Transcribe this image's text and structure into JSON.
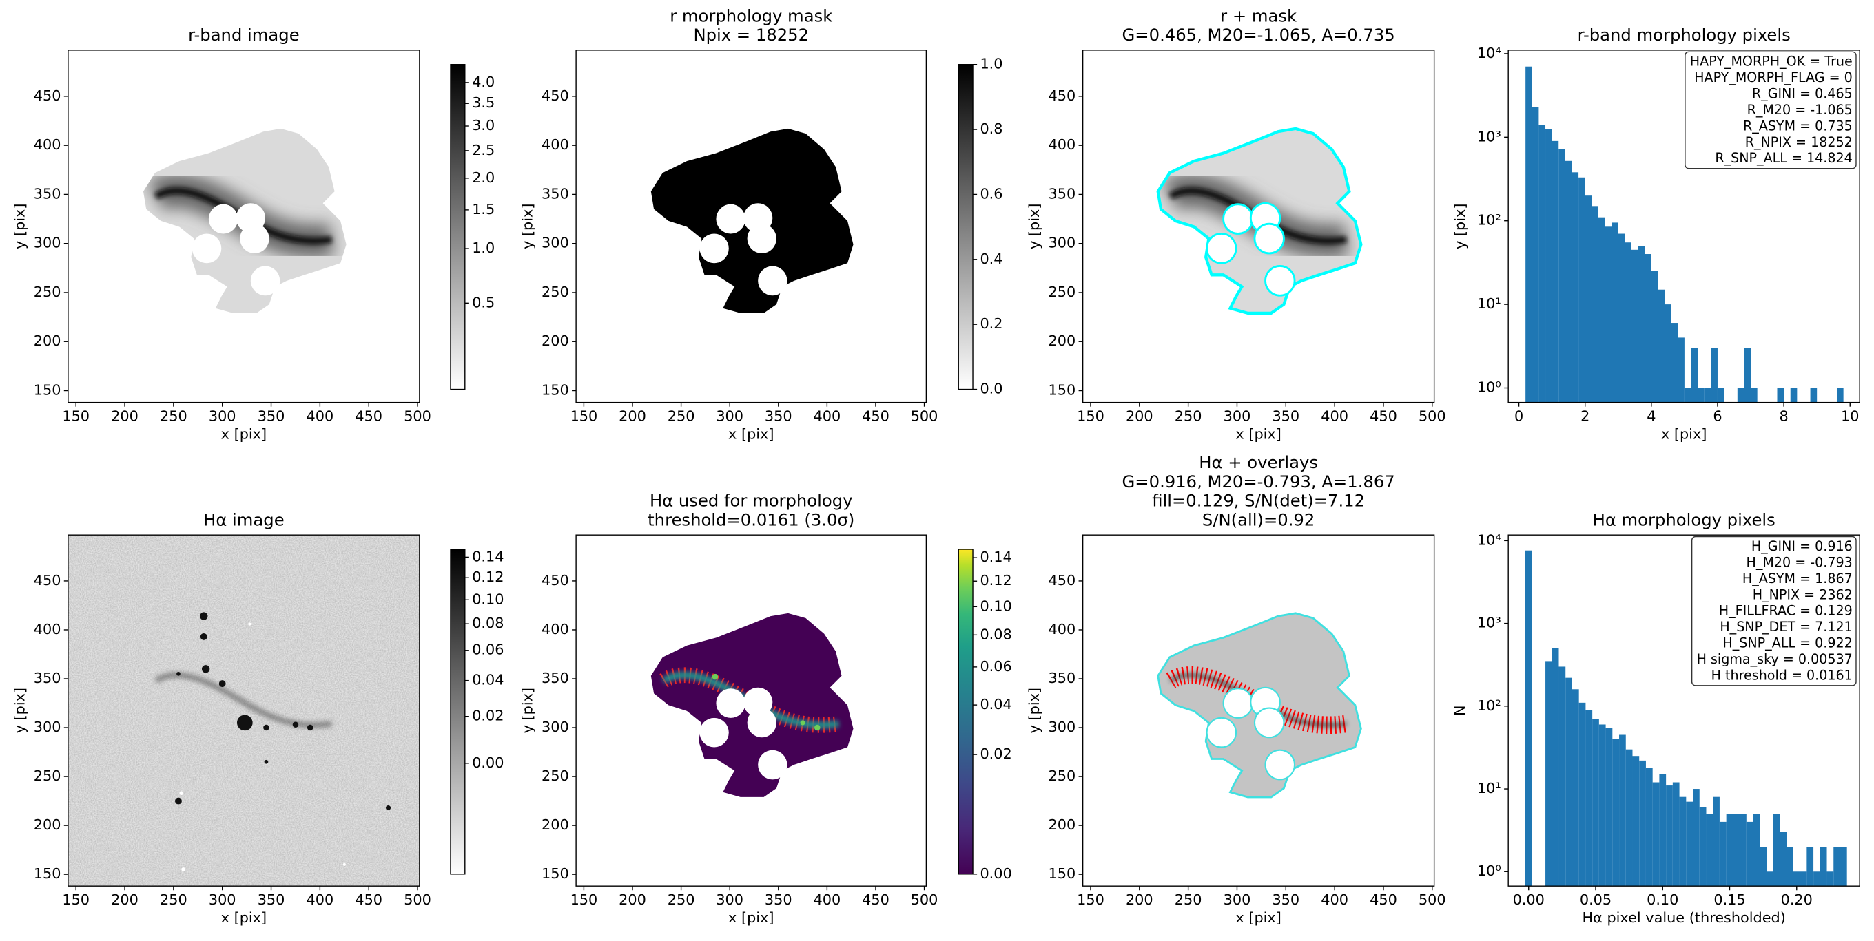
{
  "chart_data": [
    {
      "type": "image",
      "title_lines": [
        "r-band image"
      ],
      "xlabel": "x [pix]",
      "ylabel": "y [pix]",
      "xlim": [
        142,
        502
      ],
      "ylim": [
        138,
        497
      ],
      "xticks": [
        150,
        200,
        250,
        300,
        350,
        400,
        450,
        500
      ],
      "yticks": [
        150,
        200,
        250,
        300,
        350,
        400,
        450
      ],
      "colorbar": {
        "cmap": "gray_r",
        "scale": "sqrt",
        "clim": [
          0.2,
          4.46
        ],
        "ticks": [
          0.5,
          {
            "value": 1,
            "label": "1.0"
          },
          1.5,
          {
            "value": 2,
            "label": "2.0"
          },
          2.5,
          {
            "value": 3,
            "label": "3.0"
          },
          3.5,
          {
            "value": 4,
            "label": "4.0"
          }
        ]
      }
    },
    {
      "type": "image",
      "title_lines": [
        "r morphology mask",
        "Npix = 18252"
      ],
      "xlabel": "x [pix]",
      "ylabel": "y [pix]",
      "xlim": [
        142,
        502
      ],
      "ylim": [
        138,
        497
      ],
      "xticks": [
        150,
        200,
        250,
        300,
        350,
        400,
        450,
        500
      ],
      "yticks": [
        150,
        200,
        250,
        300,
        350,
        400,
        450
      ],
      "colorbar": {
        "cmap": "gray_r",
        "scale": "linear",
        "clim": [
          0,
          1
        ],
        "ticks": [
          {
            "value": 0,
            "label": "0.0"
          },
          0.2,
          0.4,
          0.6,
          0.8,
          {
            "value": 1,
            "label": "1.0"
          }
        ]
      }
    },
    {
      "type": "image",
      "title_lines": [
        "r + mask",
        "G=0.465, M20=-1.065, A=0.735"
      ],
      "xlabel": "x [pix]",
      "ylabel": "y [pix]",
      "xlim": [
        142,
        502
      ],
      "ylim": [
        138,
        497
      ],
      "xticks": [
        150,
        200,
        250,
        300,
        350,
        400,
        450,
        500
      ],
      "yticks": [
        150,
        200,
        250,
        300,
        350,
        400,
        450
      ]
    },
    {
      "type": "histogram",
      "title_lines": [
        "r-band morphology pixels"
      ],
      "xlabel": "x [pix]",
      "ylabel": "y [pix]",
      "log_y": true,
      "color": "#1f77b4",
      "xlim": [
        -0.32,
        10.29
      ],
      "ylim": [
        0.67,
        11000
      ],
      "xticks": [
        0,
        2,
        4,
        6,
        8,
        10
      ],
      "yticks": [
        {
          "value": 1,
          "label": "10⁰"
        },
        {
          "value": 10,
          "label": "10¹"
        },
        {
          "value": 100,
          "label": "10²"
        },
        {
          "value": 1000,
          "label": "10³"
        },
        {
          "value": 10000,
          "label": "10⁴"
        }
      ],
      "bins": [
        0.2,
        0.4,
        0.6,
        0.8,
        1,
        1.2,
        1.4,
        1.6,
        1.8,
        2,
        2.2,
        2.4,
        2.6,
        2.8,
        3,
        3.2,
        3.4,
        3.6,
        3.8,
        4,
        4.2,
        4.4,
        4.6,
        4.8,
        5,
        5.2,
        5.4,
        5.6,
        5.8,
        6,
        6.2,
        6.4,
        6.6,
        6.8,
        7,
        7.2,
        7.4,
        7.6,
        7.8,
        8,
        8.2,
        8.4,
        8.6,
        8.8,
        9,
        9.2,
        9.4,
        9.6,
        9.8,
        10
      ],
      "values": [
        7000,
        2300,
        1400,
        1250,
        900,
        720,
        520,
        380,
        330,
        200,
        150,
        110,
        85,
        95,
        70,
        55,
        45,
        50,
        40,
        25,
        15,
        10,
        6,
        4,
        1,
        3,
        1,
        1,
        3,
        1,
        0,
        0,
        1,
        3,
        1,
        0,
        0,
        0,
        1,
        0,
        1,
        0,
        0,
        1,
        0,
        0,
        0,
        1,
        0
      ],
      "annotation_lines": [
        "HAPY_MORPH_OK = True",
        "HAPY_MORPH_FLAG = 0",
        "R_GINI = 0.465",
        "R_M20 = -1.065",
        "R_ASYM = 0.735",
        "R_NPIX = 18252",
        "R_SNP_ALL = 14.824"
      ]
    },
    {
      "type": "image",
      "title_lines": [
        "Hα image"
      ],
      "xlabel": "x [pix]",
      "ylabel": "y [pix]",
      "xlim": [
        142,
        502
      ],
      "ylim": [
        138,
        497
      ],
      "xticks": [
        150,
        200,
        250,
        300,
        350,
        400,
        450,
        500
      ],
      "yticks": [
        150,
        200,
        250,
        300,
        350,
        400,
        450
      ],
      "colorbar": {
        "cmap": "gray_r",
        "scale": "sqrt",
        "clim": [
          -0.0195,
          0.148
        ],
        "ticks": [
          {
            "value": 0,
            "label": "0.00"
          },
          0.02,
          0.04,
          0.06,
          0.08,
          {
            "value": 0.1,
            "label": "0.10"
          },
          0.12,
          0.14
        ]
      }
    },
    {
      "type": "image",
      "title_lines": [
        "Hα used for morphology",
        "threshold=0.0161 (3.0σ)"
      ],
      "xlabel": "x [pix]",
      "ylabel": "y [pix]",
      "xlim": [
        142,
        502
      ],
      "ylim": [
        138,
        497
      ],
      "xticks": [
        150,
        200,
        250,
        300,
        350,
        400,
        450,
        500
      ],
      "yticks": [
        150,
        200,
        250,
        300,
        350,
        400,
        450
      ],
      "colorbar": {
        "cmap": "viridis",
        "scale": "sqrt",
        "clim": [
          0,
          0.1475
        ],
        "ticks": [
          {
            "value": 0,
            "label": "0.00"
          },
          0.02,
          0.04,
          0.06,
          0.08,
          {
            "value": 0.1,
            "label": "0.10"
          },
          0.12,
          0.14
        ]
      }
    },
    {
      "type": "image",
      "title_lines": [
        "Hα + overlays",
        "G=0.916, M20=-0.793, A=1.867",
        "fill=0.129, S/N(det)=7.12",
        "S/N(all)=0.92"
      ],
      "xlabel": "x [pix]",
      "ylabel": "y [pix]",
      "xlim": [
        142,
        502
      ],
      "ylim": [
        138,
        497
      ],
      "xticks": [
        150,
        200,
        250,
        300,
        350,
        400,
        450,
        500
      ],
      "yticks": [
        150,
        200,
        250,
        300,
        350,
        400,
        450
      ]
    },
    {
      "type": "histogram",
      "title_lines": [
        "Hα morphology pixels"
      ],
      "xlabel": "Hα pixel value (thresholded)",
      "ylabel": "N",
      "log_y": true,
      "color": "#1f77b4",
      "xlim": [
        -0.0152,
        0.247
      ],
      "ylim": [
        0.67,
        11700
      ],
      "xticks": [
        {
          "value": 0,
          "label": "0.00"
        },
        0.05,
        {
          "value": 0.1,
          "label": "0.10"
        },
        0.15,
        {
          "value": 0.2,
          "label": "0.20"
        }
      ],
      "yticks": [
        {
          "value": 1,
          "label": "10⁰"
        },
        {
          "value": 10,
          "label": "10¹"
        },
        {
          "value": 100,
          "label": "10²"
        },
        {
          "value": 1000,
          "label": "10³"
        },
        {
          "value": 10000,
          "label": "10⁴"
        }
      ],
      "bins": [
        -0.0025,
        0.0025,
        0.0075,
        0.0125,
        0.0175,
        0.0225,
        0.0275,
        0.0325,
        0.0375,
        0.0425,
        0.0475,
        0.0525,
        0.0575,
        0.0625,
        0.0675,
        0.0725,
        0.0775,
        0.0825,
        0.0875,
        0.0925,
        0.0975,
        0.1025,
        0.1075,
        0.1125,
        0.1175,
        0.1225,
        0.1275,
        0.1325,
        0.1375,
        0.1425,
        0.1475,
        0.1525,
        0.1575,
        0.1625,
        0.1675,
        0.1725,
        0.1775,
        0.1825,
        0.1875,
        0.1925,
        0.1975,
        0.2025,
        0.2075,
        0.2125,
        0.2175,
        0.2225,
        0.2275,
        0.2325,
        0.2375
      ],
      "values": [
        7600,
        0,
        0,
        350,
        500,
        300,
        220,
        160,
        110,
        90,
        70,
        60,
        55,
        40,
        45,
        30,
        25,
        22,
        18,
        12,
        15,
        11,
        12,
        8,
        7,
        10,
        6,
        5,
        8,
        4,
        5,
        5,
        5,
        4,
        5,
        2,
        1,
        5,
        3,
        2,
        1,
        1,
        2,
        1,
        2,
        1,
        2,
        2
      ],
      "annotation_lines": [
        "H_GINI = 0.916",
        "H_M20 = -0.793",
        "H_ASYM = 1.867",
        "H_NPIX = 2362",
        "H_FILLFRAC = 0.129",
        "H_SNP_DET = 7.121",
        "H_SNP_ALL = 0.922",
        "H sigma_sky = 0.00537",
        "H threshold = 0.0161"
      ]
    }
  ]
}
